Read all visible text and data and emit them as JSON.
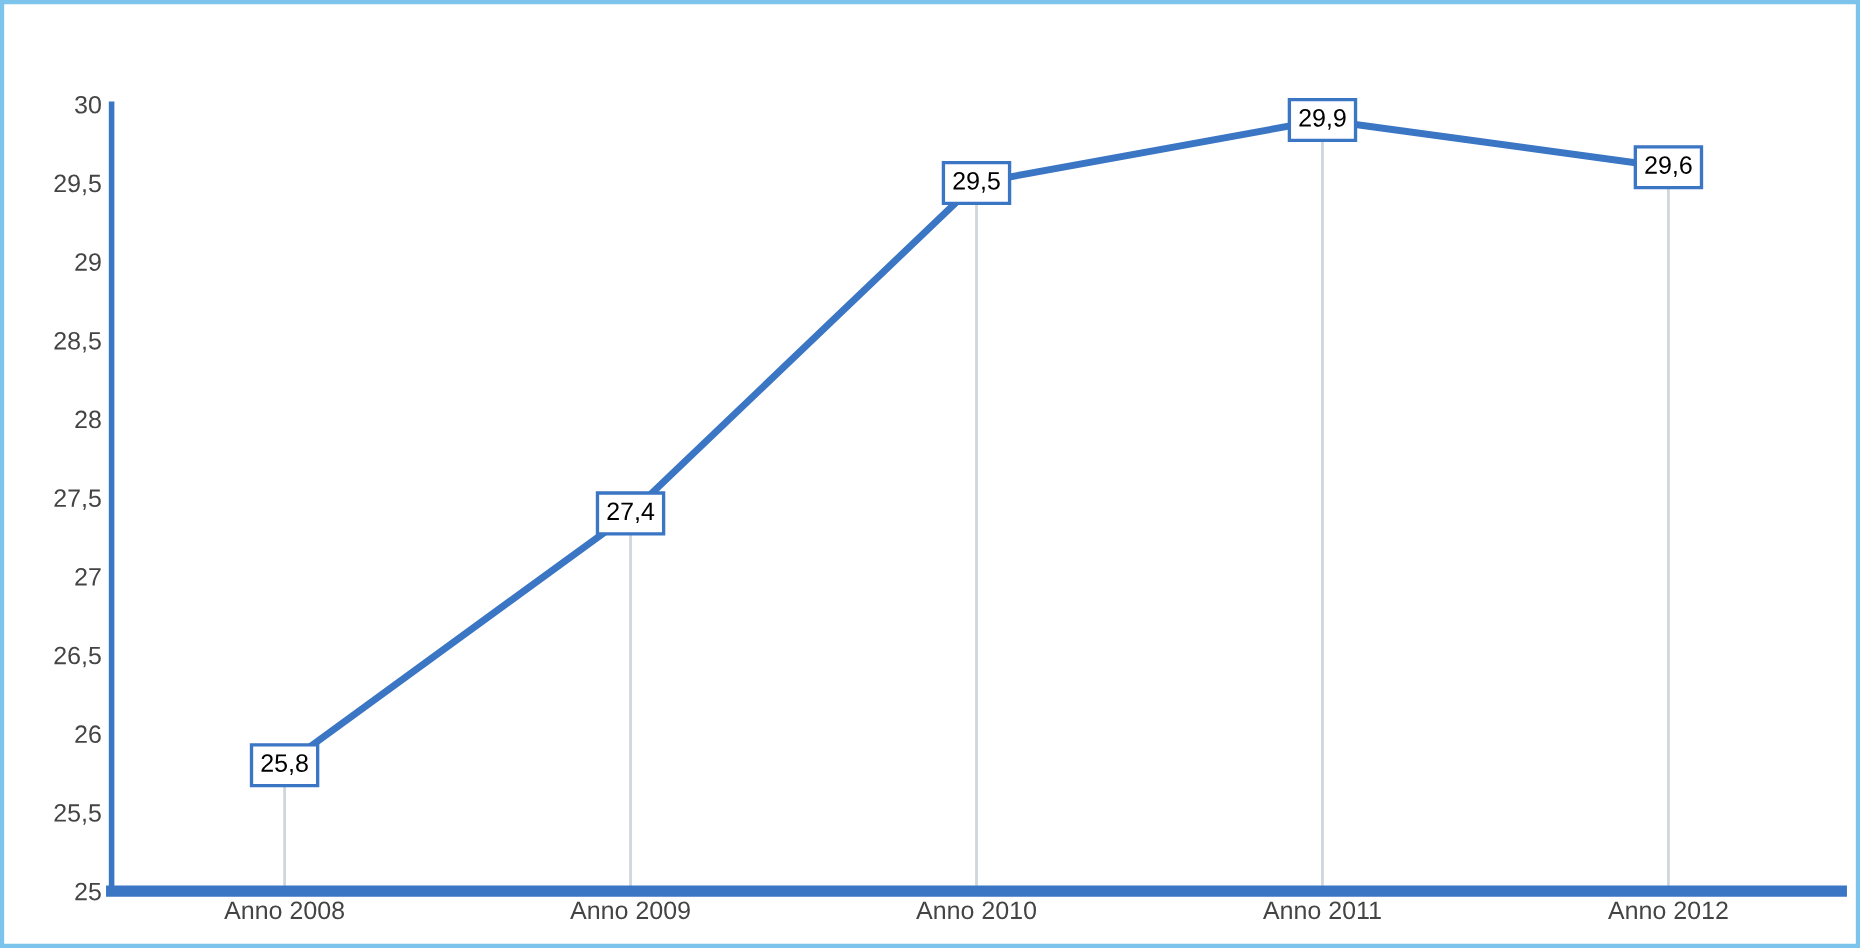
{
  "chart_data": {
    "type": "line",
    "categories": [
      "Anno 2008",
      "Anno 2009",
      "Anno 2010",
      "Anno 2011",
      "Anno 2012"
    ],
    "series": [
      {
        "color": "#3a76c4",
        "values": [
          25.8,
          27.4,
          29.5,
          29.9,
          29.6
        ],
        "value_labels": [
          "25,8",
          "27,4",
          "29,5",
          "29,9",
          "29,6"
        ]
      }
    ],
    "ylim": [
      25,
      30
    ],
    "yticks": [
      25,
      {
        "value": 25.5,
        "label": "25,5"
      },
      26,
      {
        "value": 26.5,
        "label": "26,5"
      },
      27,
      {
        "value": 27.5,
        "label": "27,5"
      },
      28,
      {
        "value": 28.5,
        "label": "28,5"
      },
      29,
      {
        "value": 29.5,
        "label": "29,5"
      },
      30
    ],
    "grid": "x",
    "marker": "square",
    "line_style": "solid",
    "legend": false
  }
}
